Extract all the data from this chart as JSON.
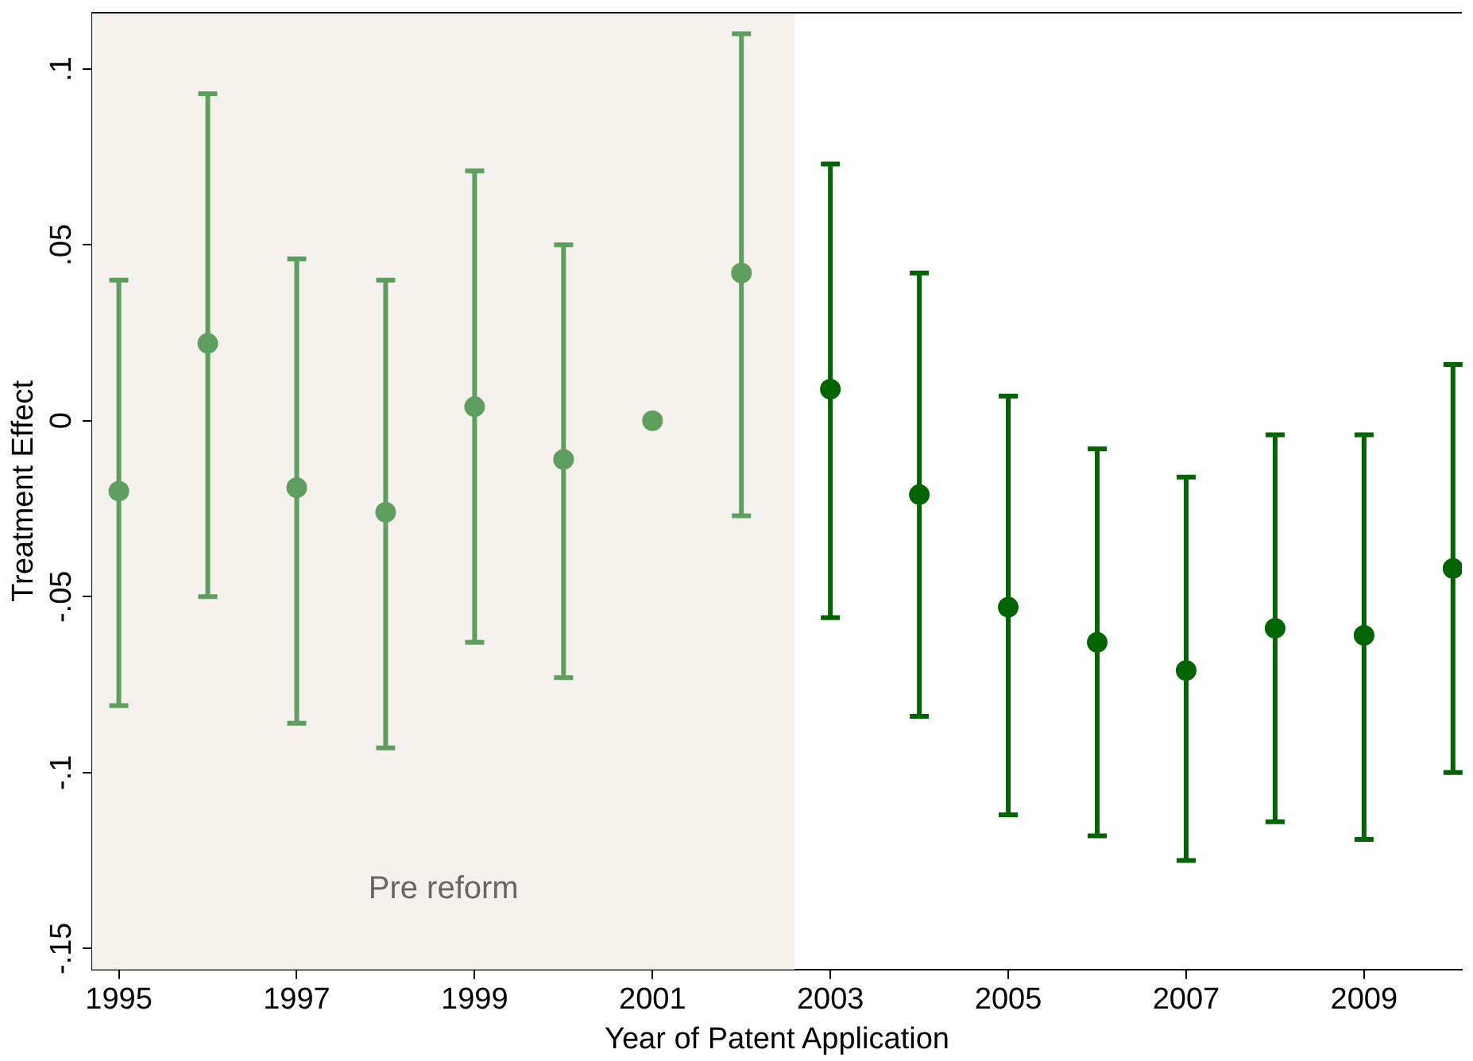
{
  "chart_data": {
    "type": "scatter",
    "xlabel": "Year of Patent Application",
    "ylabel": "Treatment Effect",
    "xlim": [
      1994.7,
      2010.1
    ],
    "ylim": [
      -0.156,
      0.116
    ],
    "xticks": [
      1995,
      1997,
      1999,
      2001,
      2003,
      2005,
      2007,
      2009
    ],
    "yticks": [
      {
        "value": -0.15,
        "label": "-.15"
      },
      {
        "value": -0.1,
        "label": "-.1"
      },
      {
        "value": -0.05,
        "label": "-.05"
      },
      {
        "value": 0,
        "label": "0"
      },
      {
        "value": 0.05,
        "label": ".05"
      },
      {
        "value": 0.1,
        "label": ".1"
      }
    ],
    "grid": false,
    "legend": false,
    "marker": "circle",
    "bands": [
      {
        "axis": "x",
        "from": 1994.7,
        "to": 2002.6,
        "label": "Pre reform",
        "color": "#f5f2ee"
      }
    ],
    "series": [
      {
        "color": "#5e9e5e",
        "x": [
          1995,
          1996,
          1997,
          1998,
          1999,
          2000,
          2001,
          2002
        ],
        "values": [
          -0.02,
          0.022,
          -0.019,
          -0.026,
          0.004,
          -0.011,
          0,
          0.042
        ],
        "errors": [
          [
            -0.081,
            0.04
          ],
          [
            -0.05,
            0.093
          ],
          [
            -0.086,
            0.046
          ],
          [
            -0.093,
            0.04
          ],
          [
            -0.063,
            0.071
          ],
          [
            -0.073,
            0.05
          ],
          null,
          [
            -0.027,
            0.11
          ]
        ]
      },
      {
        "color": "#006400",
        "x": [
          2003,
          2004,
          2005,
          2006,
          2007,
          2008,
          2009,
          2010
        ],
        "values": [
          0.009,
          -0.021,
          -0.053,
          -0.063,
          -0.071,
          -0.059,
          -0.061,
          -0.042
        ],
        "errors": [
          [
            -0.056,
            0.073
          ],
          [
            -0.084,
            0.042
          ],
          [
            -0.112,
            0.007
          ],
          [
            -0.118,
            -0.008
          ],
          [
            -0.125,
            -0.016
          ],
          [
            -0.114,
            -0.004
          ],
          [
            -0.119,
            -0.004
          ],
          [
            -0.1,
            0.016
          ]
        ]
      }
    ]
  }
}
